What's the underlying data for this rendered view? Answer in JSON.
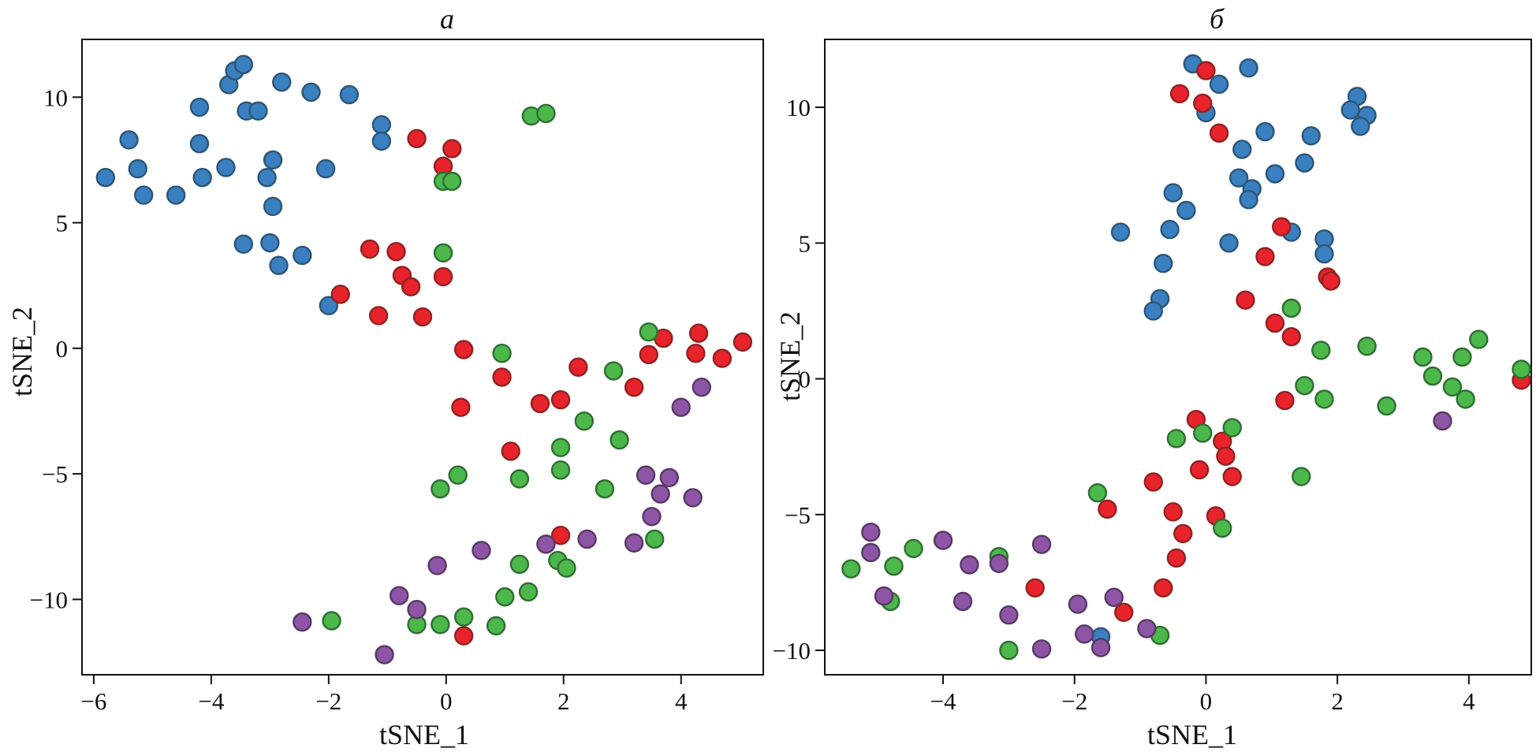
{
  "colors": {
    "blue": "#3a7fc0",
    "red": "#e8232b",
    "green": "#4cb74a",
    "purple": "#8e55a6",
    "blue_edge": "#2c5677",
    "red_edge": "#8f2323",
    "green_edge": "#2f6e33",
    "purple_edge": "#553a63"
  },
  "chart_data": [
    {
      "type": "scatter",
      "title": "а",
      "xlabel": "tSNE_1",
      "ylabel": "tSNE_2",
      "xlim": [
        -6.2,
        5.4
      ],
      "ylim": [
        -13.0,
        12.3
      ],
      "xticks": [
        -6,
        -4,
        -2,
        0,
        2,
        4
      ],
      "xtick_labels": [
        "−6",
        "−4",
        "−2",
        "0",
        "2",
        "4"
      ],
      "yticks": [
        -10,
        -5,
        0,
        5,
        10
      ],
      "ytick_labels": [
        "−10",
        "−5",
        "0",
        "5",
        "10"
      ],
      "series": [
        {
          "name": "blue",
          "color": "blue",
          "points": [
            [
              -5.8,
              6.8
            ],
            [
              -5.4,
              8.3
            ],
            [
              -5.25,
              7.15
            ],
            [
              -5.15,
              6.1
            ],
            [
              -4.6,
              6.1
            ],
            [
              -4.2,
              9.6
            ],
            [
              -4.2,
              8.15
            ],
            [
              -4.15,
              6.8
            ],
            [
              -3.75,
              7.2
            ],
            [
              -3.7,
              10.5
            ],
            [
              -3.6,
              11.05
            ],
            [
              -3.45,
              11.3
            ],
            [
              -3.4,
              9.45
            ],
            [
              -3.2,
              9.45
            ],
            [
              -3.45,
              4.15
            ],
            [
              -3.05,
              6.8
            ],
            [
              -2.95,
              7.5
            ],
            [
              -2.95,
              5.65
            ],
            [
              -3.0,
              4.2
            ],
            [
              -2.85,
              3.3
            ],
            [
              -2.8,
              10.6
            ],
            [
              -2.45,
              3.7
            ],
            [
              -2.3,
              10.2
            ],
            [
              -2.05,
              7.15
            ],
            [
              -2.0,
              1.7
            ],
            [
              -1.65,
              10.1
            ],
            [
              -1.1,
              8.9
            ],
            [
              -1.1,
              8.25
            ]
          ]
        },
        {
          "name": "red",
          "color": "red",
          "points": [
            [
              -0.5,
              8.35
            ],
            [
              -0.05,
              7.25
            ],
            [
              0.1,
              7.95
            ],
            [
              -1.3,
              3.95
            ],
            [
              -0.85,
              3.85
            ],
            [
              -0.75,
              2.9
            ],
            [
              -0.6,
              2.45
            ],
            [
              -0.05,
              2.85
            ],
            [
              -1.8,
              2.15
            ],
            [
              -1.15,
              1.3
            ],
            [
              -0.4,
              1.25
            ],
            [
              0.3,
              -0.05
            ],
            [
              0.25,
              -2.35
            ],
            [
              0.95,
              -1.15
            ],
            [
              1.1,
              -4.1
            ],
            [
              1.6,
              -2.2
            ],
            [
              1.95,
              -2.05
            ],
            [
              2.25,
              -0.75
            ],
            [
              3.2,
              -1.55
            ],
            [
              3.45,
              -0.25
            ],
            [
              3.7,
              0.4
            ],
            [
              4.25,
              -0.2
            ],
            [
              4.3,
              0.6
            ],
            [
              4.7,
              -0.4
            ],
            [
              5.05,
              0.25
            ],
            [
              1.95,
              -7.45
            ],
            [
              0.3,
              -11.45
            ]
          ]
        },
        {
          "name": "green",
          "color": "green",
          "points": [
            [
              1.45,
              9.25
            ],
            [
              1.7,
              9.35
            ],
            [
              -0.05,
              6.65
            ],
            [
              0.1,
              6.65
            ],
            [
              -0.05,
              3.8
            ],
            [
              0.95,
              -0.2
            ],
            [
              2.85,
              -0.9
            ],
            [
              3.45,
              0.65
            ],
            [
              2.35,
              -2.9
            ],
            [
              1.95,
              -3.95
            ],
            [
              2.95,
              -3.65
            ],
            [
              1.95,
              -4.85
            ],
            [
              1.25,
              -5.2
            ],
            [
              0.2,
              -5.05
            ],
            [
              -0.1,
              -5.6
            ],
            [
              2.7,
              -5.6
            ],
            [
              3.55,
              -7.6
            ],
            [
              1.9,
              -8.45
            ],
            [
              2.05,
              -8.75
            ],
            [
              1.25,
              -8.6
            ],
            [
              1.4,
              -9.7
            ],
            [
              1.0,
              -9.9
            ],
            [
              0.3,
              -10.7
            ],
            [
              -0.1,
              -11.0
            ],
            [
              -0.5,
              -11.0
            ],
            [
              0.85,
              -11.05
            ],
            [
              -1.95,
              -10.85
            ]
          ]
        },
        {
          "name": "purple",
          "color": "purple",
          "points": [
            [
              3.4,
              -5.05
            ],
            [
              3.8,
              -5.15
            ],
            [
              3.65,
              -5.8
            ],
            [
              4.2,
              -5.95
            ],
            [
              3.5,
              -6.7
            ],
            [
              3.2,
              -7.75
            ],
            [
              2.4,
              -7.6
            ],
            [
              1.7,
              -7.8
            ],
            [
              0.6,
              -8.05
            ],
            [
              -0.15,
              -8.65
            ],
            [
              -0.8,
              -9.85
            ],
            [
              -0.5,
              -10.4
            ],
            [
              -2.45,
              -10.9
            ],
            [
              -1.05,
              -12.2
            ],
            [
              4.0,
              -2.35
            ],
            [
              4.35,
              -1.55
            ]
          ]
        }
      ]
    },
    {
      "type": "scatter",
      "title": "б",
      "xlabel": "tSNE_1",
      "ylabel": "tSNE_2",
      "xlim": [
        -5.8,
        4.95
      ],
      "ylim": [
        -10.9,
        12.5
      ],
      "xticks": [
        -4,
        -2,
        0,
        2,
        4
      ],
      "xtick_labels": [
        "−4",
        "−2",
        "0",
        "2",
        "4"
      ],
      "yticks": [
        -10,
        -5,
        0,
        5,
        10
      ],
      "ytick_labels": [
        "−10",
        "−5",
        "0",
        "5",
        "10"
      ],
      "series": [
        {
          "name": "blue",
          "color": "blue",
          "points": [
            [
              -0.2,
              11.6
            ],
            [
              0.65,
              11.45
            ],
            [
              0.2,
              10.85
            ],
            [
              0.0,
              9.8
            ],
            [
              0.9,
              9.1
            ],
            [
              1.6,
              8.95
            ],
            [
              0.55,
              8.45
            ],
            [
              1.5,
              7.95
            ],
            [
              1.05,
              7.55
            ],
            [
              0.5,
              7.4
            ],
            [
              0.7,
              7.0
            ],
            [
              0.65,
              6.6
            ],
            [
              -0.5,
              6.85
            ],
            [
              -0.3,
              6.2
            ],
            [
              -0.55,
              5.5
            ],
            [
              -1.3,
              5.4
            ],
            [
              0.35,
              5.0
            ],
            [
              1.3,
              5.4
            ],
            [
              1.8,
              5.15
            ],
            [
              1.8,
              4.6
            ],
            [
              -0.65,
              4.25
            ],
            [
              -0.7,
              2.95
            ],
            [
              -0.8,
              2.5
            ],
            [
              2.3,
              10.4
            ],
            [
              2.2,
              9.9
            ],
            [
              2.45,
              9.7
            ],
            [
              2.35,
              9.3
            ],
            [
              -1.6,
              -9.5
            ]
          ]
        },
        {
          "name": "red",
          "color": "red",
          "points": [
            [
              -0.4,
              10.5
            ],
            [
              0.0,
              11.35
            ],
            [
              -0.05,
              10.15
            ],
            [
              0.2,
              9.05
            ],
            [
              1.15,
              5.6
            ],
            [
              0.9,
              4.5
            ],
            [
              1.85,
              3.75
            ],
            [
              1.9,
              3.6
            ],
            [
              0.6,
              2.9
            ],
            [
              1.05,
              2.05
            ],
            [
              1.3,
              1.55
            ],
            [
              1.2,
              -0.8
            ],
            [
              4.8,
              -0.05
            ],
            [
              -0.15,
              -1.5
            ],
            [
              0.25,
              -2.3
            ],
            [
              0.3,
              -2.85
            ],
            [
              -0.1,
              -3.35
            ],
            [
              0.4,
              -3.6
            ],
            [
              -0.8,
              -3.8
            ],
            [
              -1.5,
              -4.8
            ],
            [
              -0.5,
              -4.9
            ],
            [
              0.15,
              -5.05
            ],
            [
              -0.35,
              -5.7
            ],
            [
              -0.45,
              -6.6
            ],
            [
              -0.65,
              -7.7
            ],
            [
              -2.6,
              -7.7
            ],
            [
              -1.25,
              -8.6
            ]
          ]
        },
        {
          "name": "green",
          "color": "green",
          "points": [
            [
              1.3,
              2.6
            ],
            [
              1.75,
              1.05
            ],
            [
              2.45,
              1.2
            ],
            [
              1.5,
              -0.25
            ],
            [
              1.8,
              -0.75
            ],
            [
              2.75,
              -1.0
            ],
            [
              3.3,
              0.8
            ],
            [
              3.45,
              0.1
            ],
            [
              3.75,
              -0.3
            ],
            [
              3.9,
              0.8
            ],
            [
              3.95,
              -0.75
            ],
            [
              4.15,
              1.45
            ],
            [
              4.8,
              0.35
            ],
            [
              -0.45,
              -2.2
            ],
            [
              -0.05,
              -2.0
            ],
            [
              0.4,
              -1.8
            ],
            [
              1.45,
              -3.6
            ],
            [
              -1.65,
              -4.2
            ],
            [
              0.25,
              -5.5
            ],
            [
              -3.15,
              -6.55
            ],
            [
              -4.45,
              -6.25
            ],
            [
              -4.75,
              -6.9
            ],
            [
              -5.4,
              -7.0
            ],
            [
              -4.8,
              -8.2
            ],
            [
              -3.0,
              -10.0
            ],
            [
              -0.7,
              -9.45
            ]
          ]
        },
        {
          "name": "purple",
          "color": "purple",
          "points": [
            [
              -5.1,
              -5.65
            ],
            [
              -5.1,
              -6.4
            ],
            [
              -4.0,
              -5.95
            ],
            [
              -2.5,
              -6.1
            ],
            [
              -3.6,
              -6.85
            ],
            [
              -3.15,
              -6.8
            ],
            [
              -4.9,
              -8.0
            ],
            [
              -3.7,
              -8.2
            ],
            [
              -3.0,
              -8.7
            ],
            [
              -1.95,
              -8.3
            ],
            [
              -1.4,
              -8.05
            ],
            [
              -1.85,
              -9.4
            ],
            [
              -0.9,
              -9.2
            ],
            [
              -1.6,
              -9.9
            ],
            [
              -2.5,
              -9.95
            ],
            [
              3.6,
              -1.55
            ]
          ]
        }
      ]
    }
  ]
}
